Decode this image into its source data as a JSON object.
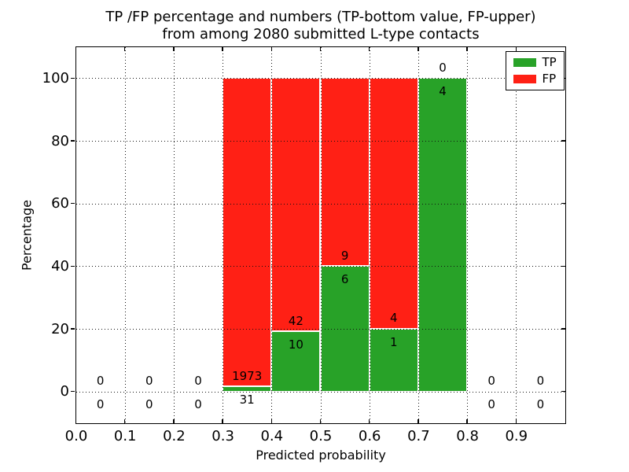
{
  "chart_data": {
    "type": "bar",
    "stacked": true,
    "title_lines": [
      "TP /FP percentage and numbers (TP-bottom value, FP-upper)",
      "from among 2080 submitted L-type contacts"
    ],
    "xlabel": "Predicted probability",
    "ylabel": "Percentage",
    "xlim": [
      0.0,
      1.0
    ],
    "ylim": [
      -10,
      110
    ],
    "xticks": [
      {
        "value": 0.0,
        "label": "0.0"
      },
      {
        "value": 0.1,
        "label": "0.1"
      },
      {
        "value": 0.2,
        "label": "0.2"
      },
      {
        "value": 0.3,
        "label": "0.3"
      },
      {
        "value": 0.4,
        "label": "0.4"
      },
      {
        "value": 0.5,
        "label": "0.5"
      },
      {
        "value": 0.6,
        "label": "0.6"
      },
      {
        "value": 0.7,
        "label": "0.7"
      },
      {
        "value": 0.8,
        "label": "0.8"
      },
      {
        "value": 0.9,
        "label": "0.9"
      }
    ],
    "yticks": [
      {
        "value": 0,
        "label": "0"
      },
      {
        "value": 20,
        "label": "20"
      },
      {
        "value": 40,
        "label": "40"
      },
      {
        "value": 60,
        "label": "60"
      },
      {
        "value": 80,
        "label": "80"
      },
      {
        "value": 100,
        "label": "100"
      }
    ],
    "grid": {
      "style": "dotted",
      "color": "#111111",
      "above_bars": true
    },
    "total_contacts": 2080,
    "series": [
      {
        "name": "TP",
        "color": "#28a228"
      },
      {
        "name": "FP",
        "color": "#ff2015"
      }
    ],
    "bins": [
      {
        "x0": 0.0,
        "x1": 0.1,
        "tp": 0,
        "fp": 0,
        "tp_pct": 0,
        "total_pct": 0
      },
      {
        "x0": 0.1,
        "x1": 0.2,
        "tp": 0,
        "fp": 0,
        "tp_pct": 0,
        "total_pct": 0
      },
      {
        "x0": 0.2,
        "x1": 0.3,
        "tp": 0,
        "fp": 0,
        "tp_pct": 0,
        "total_pct": 0
      },
      {
        "x0": 0.3,
        "x1": 0.4,
        "tp": 31,
        "fp": 1973,
        "tp_pct": 1.55,
        "total_pct": 100
      },
      {
        "x0": 0.4,
        "x1": 0.5,
        "tp": 10,
        "fp": 42,
        "tp_pct": 19.23,
        "total_pct": 100
      },
      {
        "x0": 0.5,
        "x1": 0.6,
        "tp": 6,
        "fp": 9,
        "tp_pct": 40,
        "total_pct": 100
      },
      {
        "x0": 0.6,
        "x1": 0.7,
        "tp": 1,
        "fp": 4,
        "tp_pct": 20,
        "total_pct": 100
      },
      {
        "x0": 0.7,
        "x1": 0.8,
        "tp": 4,
        "fp": 0,
        "tp_pct": 100,
        "total_pct": 100
      },
      {
        "x0": 0.8,
        "x1": 0.9,
        "tp": 0,
        "fp": 0,
        "tp_pct": 0,
        "total_pct": 0
      },
      {
        "x0": 0.9,
        "x1": 1.0,
        "tp": 0,
        "fp": 0,
        "tp_pct": 0,
        "total_pct": 0
      }
    ],
    "legend": {
      "position": "upper right",
      "entries": [
        "TP",
        "FP"
      ]
    }
  }
}
